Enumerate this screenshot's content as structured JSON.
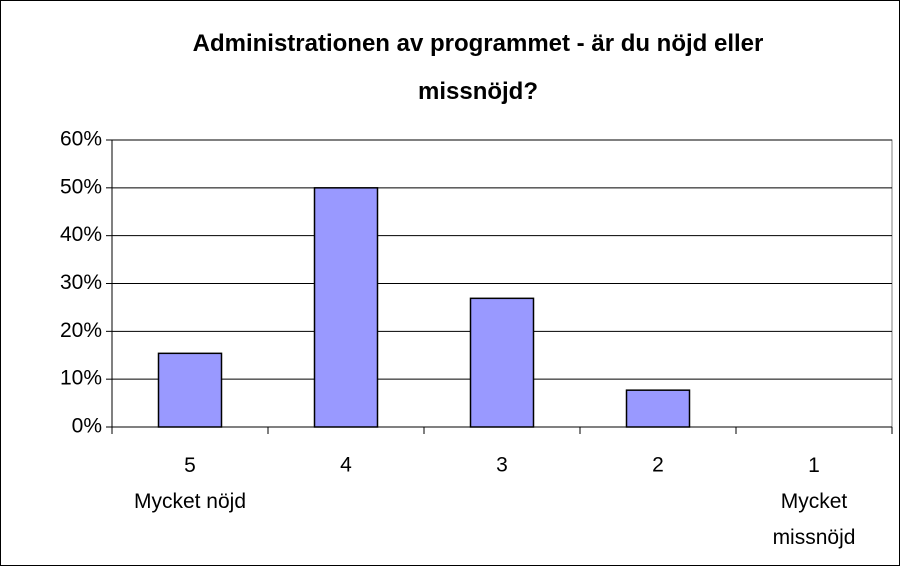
{
  "chart_data": {
    "type": "bar",
    "title": "Administrationen av programmet - är du nöjd eller\nmissnöjd?",
    "categories": [
      "5\nMycket nöjd",
      "4",
      "3",
      "2",
      "1\nMycket\nmissnöjd"
    ],
    "values": [
      15.4,
      50,
      26.9,
      7.7,
      0
    ],
    "color": "#9999ff",
    "ylim": [
      0,
      60
    ],
    "yticks": [
      {
        "value": 0,
        "label": "0%"
      },
      {
        "value": 10,
        "label": "10%"
      },
      {
        "value": 20,
        "label": "20%"
      },
      {
        "value": 30,
        "label": "30%"
      },
      {
        "value": 40,
        "label": "40%"
      },
      {
        "value": 50,
        "label": "50%"
      },
      {
        "value": 60,
        "label": "60%"
      }
    ],
    "grid": true
  }
}
